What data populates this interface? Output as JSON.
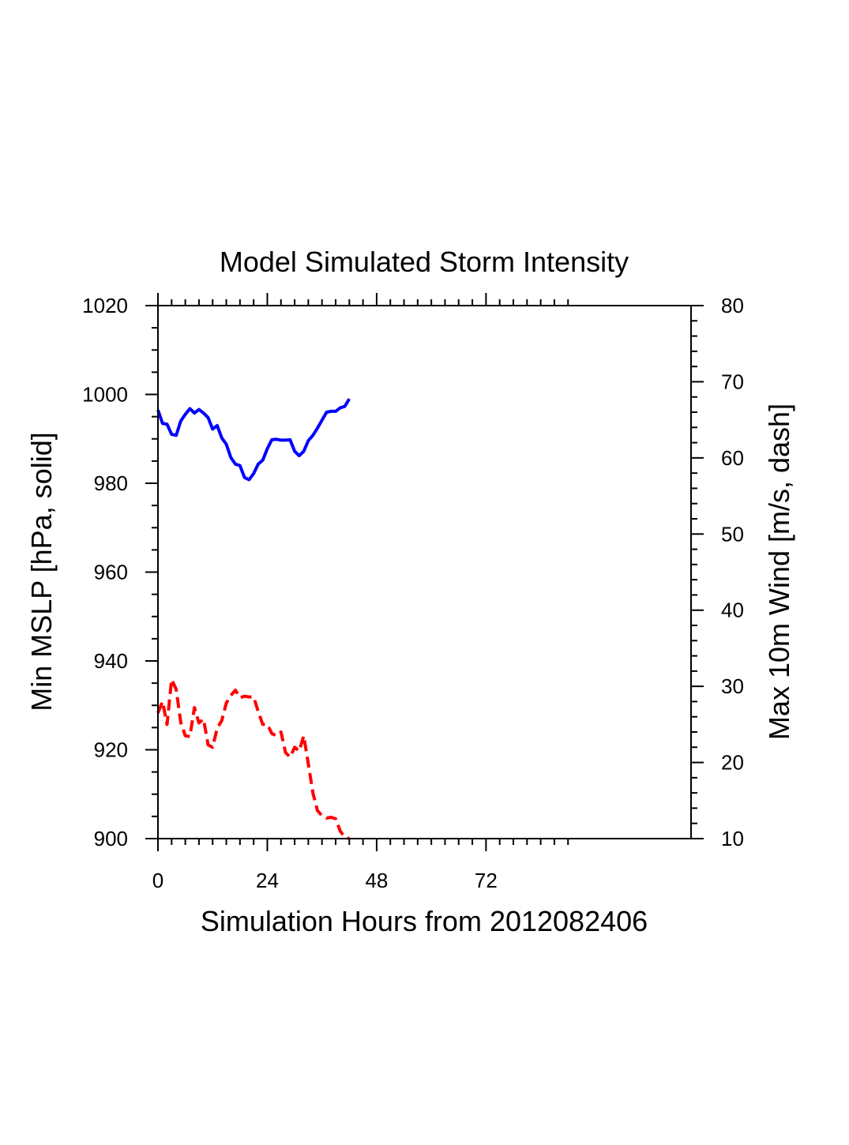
{
  "chart_data": {
    "type": "line",
    "title": "Model Simulated Storm Intensity",
    "xlabel": "Simulation Hours from 2012082406",
    "ylabel_left": "Min MSLP  [hPa, solid]",
    "ylabel_right": "Max 10m Wind  [m/s, dash]",
    "xlim": [
      0,
      117
    ],
    "x_ticks": [
      0,
      24,
      48,
      72
    ],
    "ylim_left": [
      900,
      1020
    ],
    "y_ticks_left": [
      900,
      920,
      940,
      960,
      980,
      1000,
      1020
    ],
    "ylim_right": [
      10,
      80
    ],
    "y_ticks_right": [
      10,
      20,
      30,
      40,
      50,
      60,
      70,
      80
    ],
    "grid": false,
    "series": [
      {
        "axis": "left",
        "style": "solid",
        "color": "#0000ff",
        "x": [
          0,
          1,
          2,
          3,
          4,
          5,
          6,
          7,
          8,
          9,
          10,
          11,
          12,
          13,
          14,
          15,
          16,
          17,
          18,
          19,
          20,
          21,
          22,
          23,
          24,
          25,
          26,
          27,
          28,
          29,
          30,
          31,
          32,
          33,
          34,
          35,
          36,
          37,
          38,
          39,
          40,
          41,
          42
        ],
        "values": [
          996.5,
          993.5,
          993.3,
          991.0,
          990.8,
          994.0,
          995.5,
          996.8,
          995.8,
          996.6,
          995.8,
          994.8,
          992.2,
          993.0,
          990.2,
          988.8,
          985.8,
          984.3,
          984.0,
          981.3,
          980.8,
          982.2,
          984.3,
          985.2,
          987.8,
          989.8,
          989.9,
          989.7,
          989.7,
          989.8,
          987.2,
          986.2,
          987.2,
          989.6,
          990.8,
          992.4,
          994.2,
          996.0,
          996.2,
          996.2,
          997.0,
          997.3,
          999.0
        ]
      },
      {
        "axis": "right",
        "style": "dashed",
        "color": "#ff0000",
        "x": [
          0,
          1,
          2,
          3,
          4,
          5,
          6,
          7,
          8,
          9,
          10,
          11,
          12,
          13,
          14,
          15,
          16,
          17,
          18,
          19,
          20,
          21,
          22,
          23,
          24,
          25,
          26,
          27,
          28,
          29,
          30,
          31,
          32,
          33,
          34,
          35,
          36,
          37,
          38,
          39,
          40,
          41,
          42
        ],
        "values": [
          26.5,
          28.0,
          25.0,
          30.9,
          29.6,
          25.3,
          23.5,
          23.4,
          27.2,
          25.2,
          25.7,
          22.3,
          22.0,
          24.5,
          25.5,
          27.8,
          28.8,
          29.5,
          28.5,
          28.7,
          28.6,
          28.6,
          26.7,
          25.0,
          25.0,
          23.8,
          23.5,
          24.0,
          21.3,
          20.7,
          22.0,
          21.5,
          23.5,
          19.8,
          16.0,
          13.7,
          13.0,
          12.7,
          12.8,
          12.6,
          11.0,
          10.2,
          10.0
        ]
      }
    ]
  }
}
